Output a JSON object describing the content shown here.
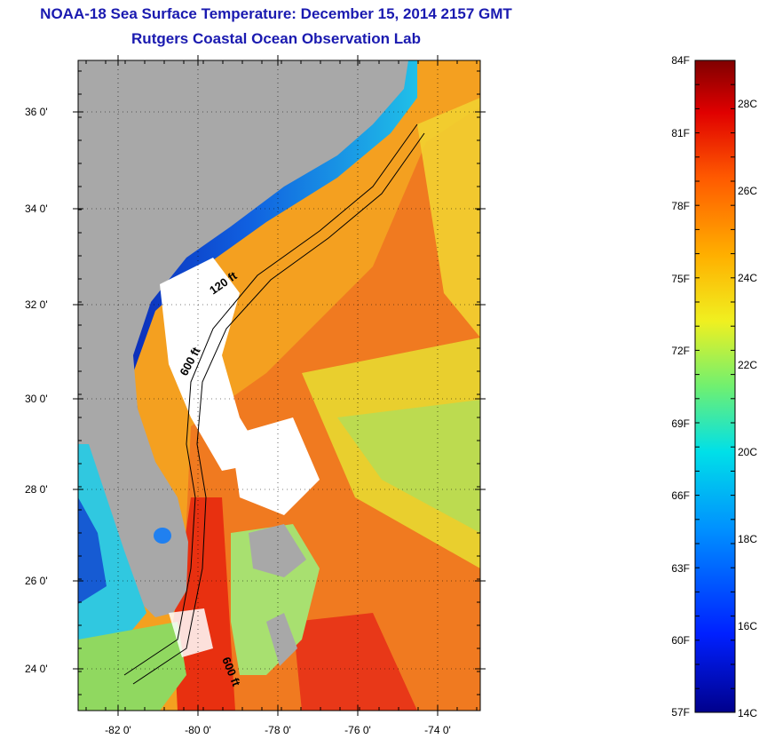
{
  "title": "NOAA-18 Sea Surface Temperature:  December 15, 2014 2157 GMT",
  "subtitle": "Rutgers Coastal Ocean Observation Lab",
  "map": {
    "lat_ticks": [
      "36 0'",
      "34 0'",
      "32 0'",
      "30 0'",
      "28 0'",
      "26 0'",
      "24 0'"
    ],
    "lon_ticks": [
      "-82 0'",
      "-80 0'",
      "-78 0'",
      "-76 0'",
      "-74 0'"
    ],
    "contour_labels": [
      "120 ft",
      "600 ft",
      "600 ft"
    ],
    "colors": {
      "land": "#a8a8a8",
      "cloud": "#ffffff",
      "warm": "#f06a1a",
      "cold": "#0a1aa0"
    }
  },
  "colorbar": {
    "f_labels": [
      "84F",
      "81F",
      "78F",
      "75F",
      "72F",
      "69F",
      "66F",
      "63F",
      "60F",
      "57F"
    ],
    "c_labels": [
      "28C",
      "26C",
      "24C",
      "22C",
      "20C",
      "18C",
      "16C",
      "14C"
    ],
    "f_values": [
      84,
      81,
      78,
      75,
      72,
      69,
      66,
      63,
      60,
      57
    ],
    "c_values": [
      28,
      26,
      24,
      22,
      20,
      18,
      16,
      14
    ]
  }
}
